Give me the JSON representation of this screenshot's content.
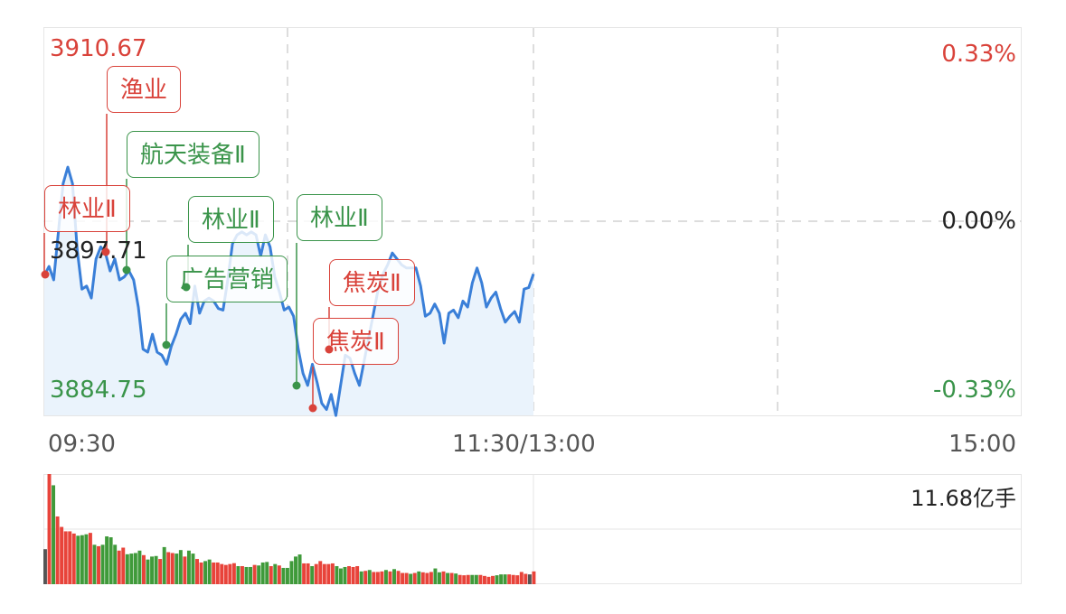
{
  "chart_data": [
    {
      "type": "line",
      "session": [
        "09:30",
        "11:30/13:00",
        "15:00"
      ],
      "x_tick_labels": [
        "09:30",
        "11:30/13:00",
        "15:00"
      ],
      "y_left_labels": {
        "max": "3910.67",
        "mid": "3897.71",
        "min": "3884.75"
      },
      "y_right_labels": {
        "max": "0.33%",
        "mid": "0.00%",
        "min": "-0.33%"
      },
      "ylim": [
        3884.75,
        3910.67
      ],
      "grid": true,
      "line_color": "#3a7fd8",
      "fill_color": "#eaf3fc",
      "prices": [
        3894.09,
        3894.69,
        3893.79,
        3897.0,
        3900.22,
        3901.32,
        3900.22,
        3895.8,
        3893.18,
        3893.38,
        3892.58,
        3895.19,
        3896.0,
        3895.59,
        3894.39,
        3895.19,
        3893.79,
        3893.99,
        3894.39,
        3893.79,
        3891.98,
        3889.17,
        3888.97,
        3890.17,
        3888.97,
        3888.77,
        3888.16,
        3889.37,
        3890.17,
        3891.17,
        3891.57,
        3890.87,
        3893.38,
        3891.57,
        3892.38,
        3892.58,
        3892.38,
        3891.88,
        3891.78,
        3893.79,
        3896.2,
        3896.8,
        3897.0,
        3896.8,
        3897.0,
        3896.8,
        3895.39,
        3896.8,
        3896.0,
        3893.99,
        3892.98,
        3891.78,
        3891.98,
        3891.37,
        3889.17,
        3887.56,
        3886.75,
        3888.16,
        3886.95,
        3885.55,
        3885.14,
        3886.15,
        3884.74,
        3886.75,
        3888.77,
        3888.56,
        3887.56,
        3886.75,
        3888.36,
        3889.97,
        3891.57,
        3893.18,
        3894.19,
        3894.79,
        3895.59,
        3895.19,
        3894.79,
        3894.59,
        3894.59,
        3894.59,
        3893.38,
        3891.37,
        3891.57,
        3892.18,
        3891.57,
        3889.57,
        3891.57,
        3891.78,
        3891.27,
        3892.38,
        3891.98,
        3893.59,
        3894.59,
        3893.59,
        3891.98,
        3892.58,
        3892.98,
        3891.88,
        3890.97,
        3891.37,
        3891.68,
        3890.97,
        3893.18,
        3893.28,
        3894.19
      ],
      "annotations": [
        {
          "text": "渔业",
          "color": "red"
        },
        {
          "text": "航天装备Ⅱ",
          "color": "green"
        },
        {
          "text": "林业Ⅱ",
          "color": "red"
        },
        {
          "text": "林业Ⅱ",
          "color": "green"
        },
        {
          "text": "广告营销",
          "color": "green"
        },
        {
          "text": "林业Ⅱ",
          "color": "green"
        },
        {
          "text": "焦炭Ⅱ",
          "color": "red"
        },
        {
          "text": "焦炭Ⅱ",
          "color": "red"
        }
      ]
    },
    {
      "type": "bar",
      "label": "11.68亿手",
      "volume_levels_pct": [
        31.8,
        100,
        89.8,
        61.5,
        52,
        48,
        48,
        46,
        44,
        44.5,
        45.3,
        46.6,
        35.8,
        34.5,
        35.8,
        43.4,
        42.6,
        35.8,
        30.5,
        33.2,
        27.2,
        27.8,
        28.3,
        30.5,
        26.4,
        22.4,
        25.1,
        25.6,
        22.9,
        33.7,
        29.1,
        28.3,
        27.8,
        31,
        25.1,
        30.5,
        27.8,
        22.9,
        19.7,
        21,
        22.4,
        19.7,
        19.7,
        18.3,
        17.5,
        18.3,
        19.1,
        16.4,
        16.4,
        15.6,
        15.6,
        17.5,
        17,
        19.7,
        20.2,
        16.4,
        18.3,
        17,
        14.8,
        14.8,
        21,
        25.1,
        27,
        18.9,
        18.9,
        16.4,
        18.3,
        21,
        18.3,
        18.3,
        18.9,
        16.4,
        14.3,
        15.6,
        16.4,
        15.6,
        16.4,
        11.6,
        12.1,
        12.9,
        11.1,
        11.1,
        11.6,
        12.9,
        11.6,
        13.7,
        12.1,
        10.2,
        10.2,
        9.4,
        10.2,
        11.6,
        10.8,
        10.2,
        11.1,
        14.3,
        10.8,
        11.6,
        10.2,
        10.2,
        9.7,
        8.4,
        8.1,
        8.4,
        8.4,
        8.4,
        8.4,
        7.5,
        6.7,
        7.5,
        8.1,
        8.9,
        8.9,
        8.9,
        8.4,
        8.1,
        11.1,
        9.4,
        8.9,
        11.6
      ],
      "volume_colors": "n r g r r r r r g g g r g r g g g g r r g g g g r g g g r g r r g g r g g r r g g r r r r r r g r g g r g g g r g r g g g g g r r g r r r r r g g g r r r g r g r r r g r g r r r g r g r r r g g r g r g r r r g g r r r r g g g r r r r r n r",
      "colors": {
        "r": "#e8433a",
        "g": "#3f9a3a",
        "n": "#555555"
      }
    }
  ]
}
